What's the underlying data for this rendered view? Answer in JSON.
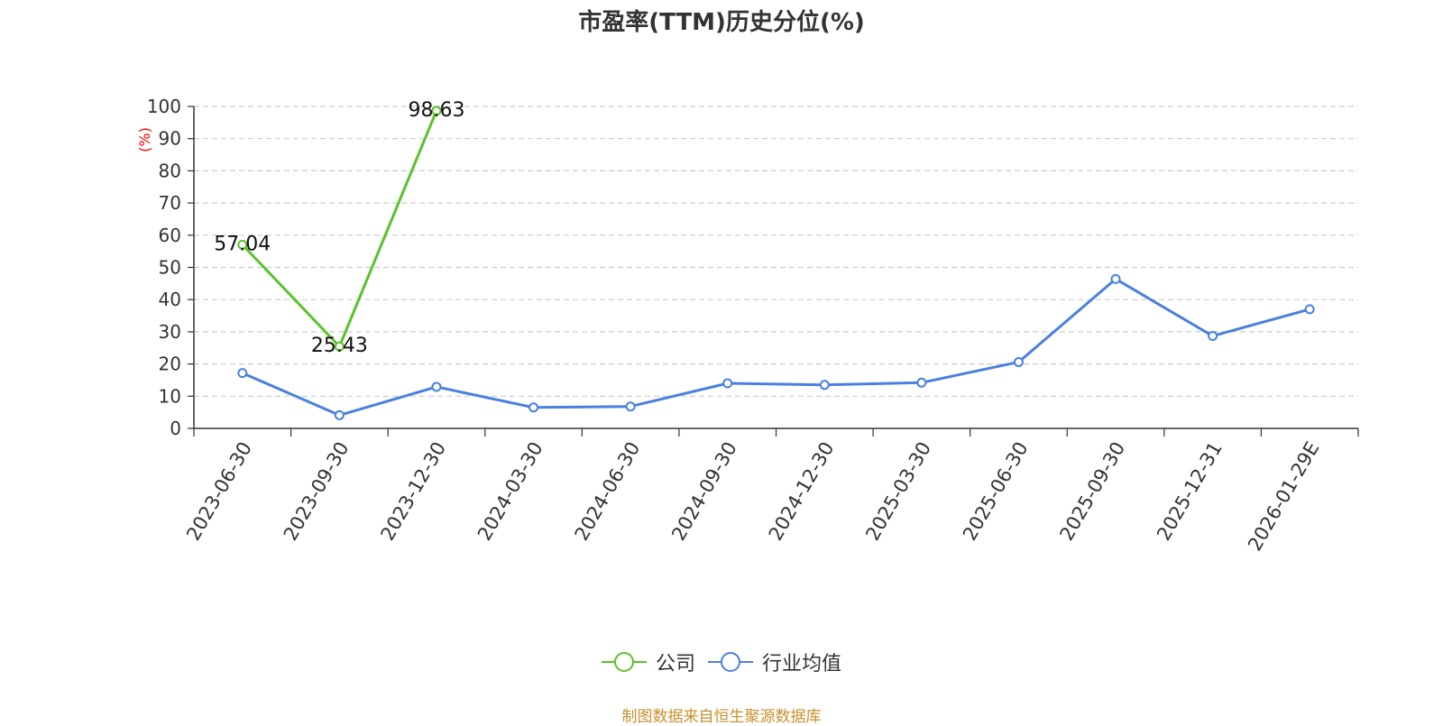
{
  "title": "市盈率(TTM)历史分位(%)",
  "source": "制图数据来自恒生聚源数据库",
  "chart_data": {
    "type": "line",
    "title": "市盈率(TTM)历史分位(%)",
    "ylabel": "(%)",
    "ylim": [
      0,
      100
    ],
    "yticks": [
      0,
      10,
      20,
      30,
      40,
      50,
      60,
      70,
      80,
      90,
      100
    ],
    "grid": true,
    "legend_position": "bottom",
    "x": [
      "2023-06-30",
      "2023-09-30",
      "2023-12-30",
      "2024-03-30",
      "2024-06-30",
      "2024-09-30",
      "2024-12-30",
      "2025-03-30",
      "2025-06-30",
      "2025-09-30",
      "2025-12-31",
      "2026-01-29E"
    ],
    "series": [
      {
        "name": "公司",
        "color": "#5ac22a",
        "values": [
          57.04,
          25.43,
          98.63,
          null,
          null,
          null,
          null,
          null,
          null,
          null,
          null,
          null
        ],
        "data_labels": [
          "57.04",
          "25.43",
          "98.63"
        ]
      },
      {
        "name": "行业均值",
        "color": "#4a80e0",
        "values": [
          17.2,
          4.1,
          12.9,
          6.5,
          6.8,
          14.0,
          13.5,
          14.2,
          20.6,
          46.4,
          28.7,
          37.0
        ]
      }
    ]
  }
}
